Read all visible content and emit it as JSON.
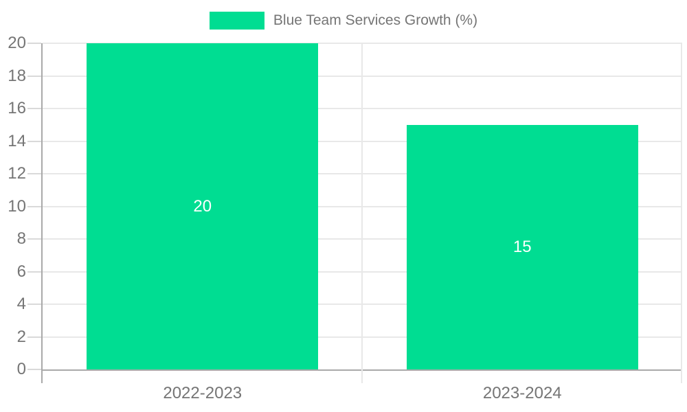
{
  "chart_data": {
    "type": "bar",
    "categories": [
      "2022-2023",
      "2023-2024"
    ],
    "values": [
      20,
      15
    ],
    "data_labels": [
      "20",
      "15"
    ],
    "legend": "Blue Team Services Growth (%)",
    "title": "",
    "xlabel": "",
    "ylabel": "",
    "ylim": [
      0,
      20
    ],
    "ytick_step": 2,
    "ytick_labels": [
      "0",
      "2",
      "4",
      "6",
      "8",
      "10",
      "12",
      "14",
      "16",
      "18",
      "20"
    ],
    "grid": true,
    "legend_position": "top-center",
    "colors": {
      "bar": "#00dd92",
      "data_label": "#ffffff",
      "axis_label": "#757575",
      "gridline": "#e8e8e8",
      "axis_line": "#a9a9a9"
    }
  }
}
